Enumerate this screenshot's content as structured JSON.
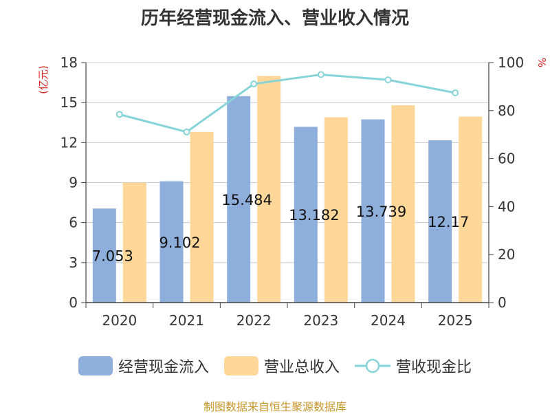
{
  "chart_data": {
    "type": "bar",
    "title": "历年经营现金流入、营业收入情况",
    "categories": [
      "2020",
      "2021",
      "2022",
      "2023",
      "2024",
      "2025"
    ],
    "series": [
      {
        "name": "经营现金流入",
        "type": "bar",
        "axis": "left",
        "color": "#8eaedb",
        "values": [
          7.053,
          9.102,
          15.484,
          13.182,
          13.739,
          12.17
        ]
      },
      {
        "name": "营业总收入",
        "type": "bar",
        "axis": "left",
        "color": "#ffd899",
        "values": [
          9.0,
          12.8,
          17.0,
          13.9,
          14.8,
          13.95
        ]
      },
      {
        "name": "营收现金比",
        "type": "line",
        "axis": "right",
        "color": "#86d3d8",
        "values": [
          78.4,
          71.1,
          91.1,
          95.0,
          92.8,
          87.4
        ]
      }
    ],
    "data_labels": [
      "7.053",
      "9.102",
      "15.484",
      "13.182",
      "13.739",
      "12.17"
    ],
    "ylabel": "(亿元)",
    "ylabel_right": "%",
    "ylim": [
      0,
      18
    ],
    "yticks": [
      "0",
      "3",
      "6",
      "9",
      "12",
      "15",
      "18"
    ],
    "ylim_right": [
      0,
      100
    ],
    "yticks_right": [
      "0",
      "20",
      "40",
      "60",
      "80",
      "100"
    ],
    "grid": true,
    "legend_position": "bottom"
  },
  "legend": {
    "items": [
      {
        "label": "经营现金流入"
      },
      {
        "label": "营业总收入"
      },
      {
        "label": "营收现金比"
      }
    ]
  },
  "source": "制图数据来自恒生聚源数据库"
}
